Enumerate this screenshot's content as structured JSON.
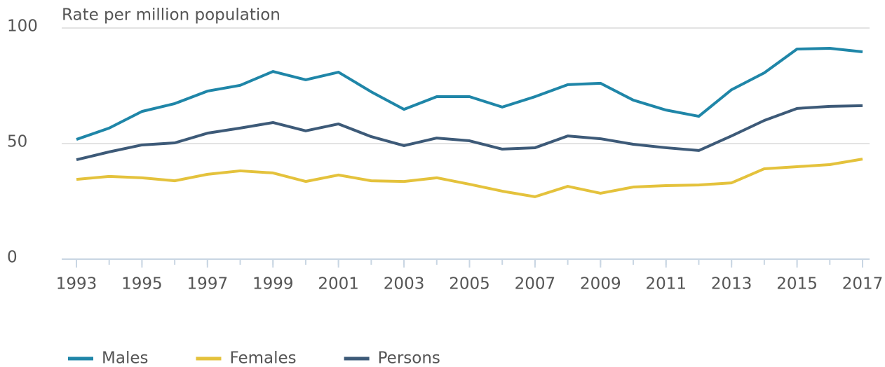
{
  "chart_data": {
    "type": "line",
    "y_axis_label": "Rate per million population",
    "x": [
      1993,
      1994,
      1995,
      1996,
      1997,
      1998,
      1999,
      2000,
      2001,
      2002,
      2003,
      2004,
      2005,
      2006,
      2007,
      2008,
      2009,
      2010,
      2011,
      2012,
      2013,
      2014,
      2015,
      2016,
      2017
    ],
    "series": [
      {
        "name": "Males",
        "color": "#1f86a8",
        "values": [
          51.8,
          56.7,
          63.9,
          67.3,
          72.7,
          75.2,
          81.2,
          77.6,
          80.9,
          72.4,
          64.8,
          70.3,
          70.3,
          65.8,
          70.3,
          75.5,
          76.1,
          68.8,
          64.5,
          61.8,
          73.3,
          80.6,
          90.9,
          91.2,
          89.7
        ]
      },
      {
        "name": "Females",
        "color": "#e4c23c",
        "values": [
          34.5,
          35.8,
          35.2,
          33.9,
          36.7,
          38.2,
          37.3,
          33.6,
          36.4,
          33.9,
          33.6,
          35.2,
          32.4,
          29.4,
          27.0,
          31.5,
          28.5,
          31.2,
          31.8,
          32.1,
          33.0,
          39.1,
          40.0,
          40.9,
          43.3
        ]
      },
      {
        "name": "Persons",
        "color": "#3d5a78",
        "values": [
          43.0,
          46.4,
          49.4,
          50.3,
          54.5,
          56.7,
          59.1,
          55.5,
          58.5,
          53.0,
          49.1,
          52.4,
          51.2,
          47.6,
          48.2,
          53.3,
          52.1,
          49.7,
          48.2,
          47.0,
          53.3,
          60.0,
          65.2,
          66.1,
          66.4
        ]
      }
    ],
    "xlim": [
      1993,
      2017
    ],
    "xticks": [
      1993,
      1995,
      1997,
      1999,
      2001,
      2003,
      2005,
      2007,
      2009,
      2011,
      2013,
      2015,
      2017
    ],
    "ylim": [
      0,
      100
    ],
    "yticks": [
      0,
      50,
      100
    ],
    "grid": true,
    "legend": "bottom"
  }
}
